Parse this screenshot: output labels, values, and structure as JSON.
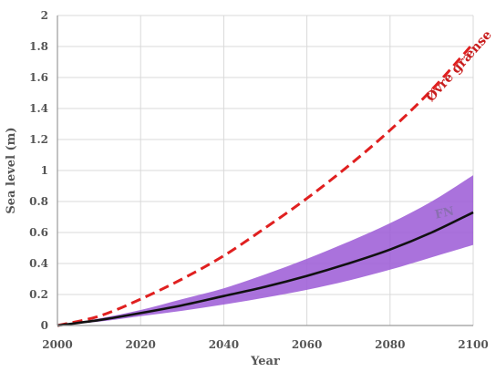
{
  "chart_data": {
    "type": "line",
    "title": "",
    "xlabel": "Year",
    "ylabel": "Sea level (m)",
    "xlim": [
      2000,
      2100
    ],
    "ylim": [
      0,
      2
    ],
    "grid": true,
    "x_ticks": [
      "2000",
      "2020",
      "2040",
      "2060",
      "2080",
      "2100"
    ],
    "y_ticks": [
      "0",
      "0.2",
      "0.4",
      "0.6",
      "0.8",
      "1",
      "1.2",
      "1.4",
      "1.6",
      "1.8",
      "2"
    ],
    "x": [
      2000,
      2010,
      2020,
      2030,
      2040,
      2050,
      2060,
      2070,
      2080,
      2090,
      2100
    ],
    "series": [
      {
        "name": "Øvre grænse",
        "style": "dashed",
        "color": "#e02020",
        "values": [
          0.0,
          0.06,
          0.17,
          0.3,
          0.45,
          0.63,
          0.82,
          1.03,
          1.26,
          1.52,
          1.82
        ]
      },
      {
        "name": "FN",
        "style": "solid",
        "color": "#111111",
        "values": [
          0.0,
          0.035,
          0.08,
          0.13,
          0.19,
          0.25,
          0.32,
          0.4,
          0.49,
          0.6,
          0.73
        ]
      }
    ],
    "band": {
      "name": "FN",
      "color": "#9b59d6",
      "lower": [
        0.0,
        0.025,
        0.06,
        0.095,
        0.135,
        0.18,
        0.23,
        0.29,
        0.36,
        0.44,
        0.52
      ],
      "upper": [
        0.0,
        0.045,
        0.1,
        0.17,
        0.24,
        0.33,
        0.43,
        0.54,
        0.66,
        0.8,
        0.97
      ]
    },
    "annotations": [
      {
        "text": "Øvre grænse",
        "series": "Øvre grænse",
        "color": "#c81e1e"
      },
      {
        "text": "FN",
        "series": "FN",
        "color": "#8a6fb0"
      }
    ]
  }
}
